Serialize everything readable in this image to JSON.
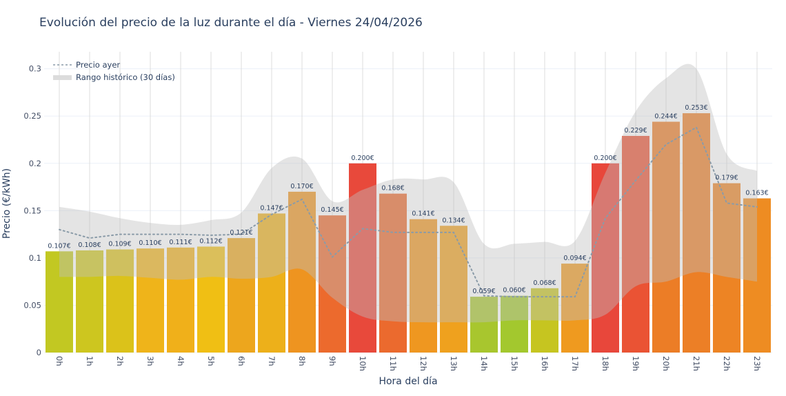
{
  "chart_data": {
    "type": "bar",
    "title": "Evolución del precio de la luz durante el día - Viernes 24/04/2026",
    "xlabel": "Hora del día",
    "ylabel": "Precio (€/kWh)",
    "ylim": [
      0,
      0.318
    ],
    "yticks": [
      0,
      0.05,
      0.1,
      0.15,
      0.2,
      0.25,
      0.3
    ],
    "ytick_labels": [
      "0",
      "0.05",
      "0.1",
      "0.15",
      "0.2",
      "0.25",
      "0.3"
    ],
    "grid": true,
    "legend_position": "top-left",
    "categories": [
      "0h",
      "1h",
      "2h",
      "3h",
      "4h",
      "5h",
      "6h",
      "7h",
      "8h",
      "9h",
      "10h",
      "11h",
      "12h",
      "13h",
      "14h",
      "15h",
      "16h",
      "17h",
      "18h",
      "19h",
      "20h",
      "21h",
      "22h",
      "23h"
    ],
    "values": [
      0.107,
      0.108,
      0.109,
      0.11,
      0.111,
      0.112,
      0.121,
      0.147,
      0.17,
      0.145,
      0.2,
      0.168,
      0.141,
      0.134,
      0.059,
      0.06,
      0.068,
      0.094,
      0.2,
      0.229,
      0.244,
      0.253,
      0.179,
      0.163
    ],
    "data_labels": [
      "0.107€",
      "0.108€",
      "0.109€",
      "0.110€",
      "0.111€",
      "0.112€",
      "0.121€",
      "0.147€",
      "0.170€",
      "0.145€",
      "0.200€",
      "0.168€",
      "0.141€",
      "0.134€",
      "0.059€",
      "0.060€",
      "0.068€",
      "0.094€",
      "0.200€",
      "0.229€",
      "0.244€",
      "0.253€",
      "0.179€",
      "0.163€"
    ],
    "bar_colors": [
      "#c2c822",
      "#cdc61f",
      "#dbc21a",
      "#efb41a",
      "#f0b01a",
      "#f0bf14",
      "#eda61d",
      "#edb01a",
      "#ee9420",
      "#ec6a2d",
      "#e8493b",
      "#eb6a2e",
      "#ef9720",
      "#efa11e",
      "#a8c62e",
      "#a3c82e",
      "#c6c520",
      "#ef9a1f",
      "#e8473b",
      "#ea5334",
      "#ec7d26",
      "#ec7f26",
      "#ed8424",
      "#ee8c22"
    ],
    "series": [
      {
        "name": "Precio ayer",
        "type": "line",
        "style": "dotted",
        "color": "#8a9ba8",
        "values": [
          0.13,
          0.121,
          0.125,
          0.125,
          0.125,
          0.124,
          0.125,
          0.146,
          0.162,
          0.101,
          0.131,
          0.127,
          0.127,
          0.127,
          0.06,
          0.059,
          0.059,
          0.059,
          0.142,
          0.182,
          0.22,
          0.238,
          0.158,
          0.154
        ]
      },
      {
        "name": "Rango histórico (30 días)",
        "type": "band",
        "color": "#c8c8c8",
        "upper": [
          0.154,
          0.149,
          0.142,
          0.137,
          0.135,
          0.14,
          0.148,
          0.195,
          0.205,
          0.16,
          0.172,
          0.183,
          0.183,
          0.18,
          0.115,
          0.115,
          0.117,
          0.118,
          0.19,
          0.255,
          0.29,
          0.3,
          0.21,
          0.192
        ],
        "lower": [
          0.08,
          0.08,
          0.081,
          0.079,
          0.077,
          0.08,
          0.078,
          0.08,
          0.088,
          0.058,
          0.038,
          0.033,
          0.032,
          0.032,
          0.032,
          0.034,
          0.034,
          0.034,
          0.04,
          0.07,
          0.075,
          0.085,
          0.08,
          0.075
        ]
      }
    ]
  }
}
